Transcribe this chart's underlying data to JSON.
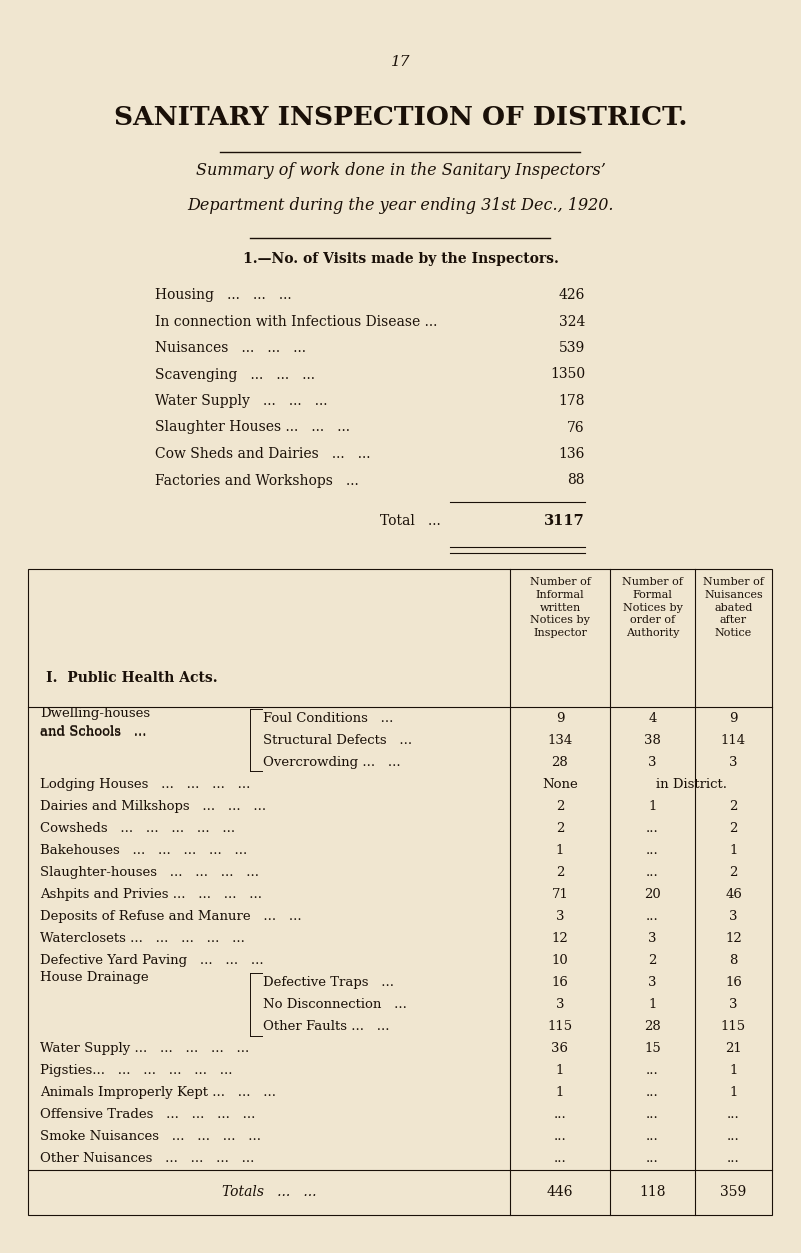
{
  "bg_color": "#f0e6d0",
  "text_color": "#1a1008",
  "page_number": "17",
  "main_title": "SANITARY INSPECTION OF DISTRICT.",
  "subtitle_line1": "Summary of work done in the Sanitary Inspectors’",
  "subtitle_line2": "Department during the year ending 31st Dec., 1920.",
  "section1_title": "1.—No. of Visits made by the Inspectors.",
  "visits": [
    [
      "Housing",
      "...",
      "...",
      "...",
      "426"
    ],
    [
      "In connection with Infectious Disease ...",
      "324"
    ],
    [
      "Nuisances",
      "...",
      "...",
      "...",
      "539"
    ],
    [
      "Scavenging",
      "...",
      "...",
      "...",
      "1350"
    ],
    [
      "Water Supply",
      "...",
      "...",
      "...",
      "178"
    ],
    [
      "Slaughter Houses ...",
      "...",
      "...",
      "76"
    ],
    [
      "Cow Sheds and Dairies",
      "...",
      "...",
      "136"
    ],
    [
      "Factories and Workshops ...",
      "...",
      "88"
    ]
  ],
  "visits_labels": [
    "Housing   ...   ...   ...",
    "In connection with Infectious Disease ...",
    "Nuisances   ...   ...   ...",
    "Scavenging   ...   ...   ...",
    "Water Supply   ...   ...   ...",
    "Slaughter Houses ...   ...   ...",
    "Cow Sheds and Dairies   ...   ...",
    "Factories and Workshops   ..."
  ],
  "visits_values": [
    "426",
    "324",
    "539",
    "1350",
    "178",
    "76",
    "136",
    "88"
  ],
  "total_value": "3117",
  "col_header2": "Number of\nInformal\nwritten\nNotices by\nInspector",
  "col_header3": "Number of\nFormal\nNotices by\norder of\nAuthority",
  "col_header4": "Number of\nNuisances\nabated\nafter\nNotice",
  "section2_title": "I.  Public Health Acts.",
  "rows": [
    {
      "main": "Dwelling-houses",
      "main2": "and Schools   ...",
      "sub": "Foul Conditions   ...",
      "c2": "9",
      "c3": "4",
      "c4": "9",
      "brace_group": "dwelling"
    },
    {
      "main": "",
      "main2": "",
      "sub": "Structural Defects   ...",
      "c2": "134",
      "c3": "38",
      "c4": "114",
      "brace_group": "dwelling"
    },
    {
      "main": "",
      "main2": "",
      "sub": "Overcrowding ...   ...",
      "c2": "28",
      "c3": "3",
      "c4": "3",
      "brace_group": "dwelling"
    },
    {
      "main": "Lodging Houses   ...   ...   ...   ...",
      "main2": "",
      "sub": "",
      "c2": "None",
      "c3": "in District.",
      "c4": "",
      "brace_group": ""
    },
    {
      "main": "Dairies and Milkshops   ...   ...   ...",
      "main2": "",
      "sub": "",
      "c2": "2",
      "c3": "1",
      "c4": "2",
      "brace_group": ""
    },
    {
      "main": "Cowsheds   ...   ...   ...   ...   ...",
      "main2": "",
      "sub": "",
      "c2": "2",
      "c3": "...",
      "c4": "2",
      "brace_group": ""
    },
    {
      "main": "Bakehouses   ...   ...   ...   ...   ...",
      "main2": "",
      "sub": "",
      "c2": "1",
      "c3": "...",
      "c4": "1",
      "brace_group": ""
    },
    {
      "main": "Slaughter-houses   ...   ...   ...   ...",
      "main2": "",
      "sub": "",
      "c2": "2",
      "c3": "...",
      "c4": "2",
      "brace_group": ""
    },
    {
      "main": "Ashpits and Privies ...   ...   ...   ...",
      "main2": "",
      "sub": "",
      "c2": "71",
      "c3": "20",
      "c4": "46",
      "brace_group": ""
    },
    {
      "main": "Deposits of Refuse and Manure   ...   ...",
      "main2": "",
      "sub": "",
      "c2": "3",
      "c3": "...",
      "c4": "3",
      "brace_group": ""
    },
    {
      "main": "Waterclosets ...   ...   ...   ...   ...",
      "main2": "",
      "sub": "",
      "c2": "12",
      "c3": "3",
      "c4": "12",
      "brace_group": ""
    },
    {
      "main": "Defective Yard Paving   ...   ...   ...",
      "main2": "",
      "sub": "",
      "c2": "10",
      "c3": "2",
      "c4": "8",
      "brace_group": ""
    },
    {
      "main": "House Drainage",
      "main2": "",
      "sub": "Defective Traps   ...",
      "c2": "16",
      "c3": "3",
      "c4": "16",
      "brace_group": "drainage"
    },
    {
      "main": "",
      "main2": "",
      "sub": "No Disconnection   ...",
      "c2": "3",
      "c3": "1",
      "c4": "3",
      "brace_group": "drainage"
    },
    {
      "main": "",
      "main2": "",
      "sub": "Other Faults ...   ...",
      "c2": "115",
      "c3": "28",
      "c4": "115",
      "brace_group": "drainage"
    },
    {
      "main": "Water Supply ...   ...   ...   ...   ...",
      "main2": "",
      "sub": "",
      "c2": "36",
      "c3": "15",
      "c4": "21",
      "brace_group": ""
    },
    {
      "main": "Pigsties...   ...   ...   ...   ...   ...",
      "main2": "",
      "sub": "",
      "c2": "1",
      "c3": "...",
      "c4": "1",
      "brace_group": ""
    },
    {
      "main": "Animals Improperly Kept ...   ...   ...",
      "main2": "",
      "sub": "",
      "c2": "1",
      "c3": "...",
      "c4": "1",
      "brace_group": ""
    },
    {
      "main": "Offensive Trades   ...   ...   ...   ...",
      "main2": "",
      "sub": "",
      "c2": "...",
      "c3": "...",
      "c4": "...",
      "brace_group": ""
    },
    {
      "main": "Smoke Nuisances   ...   ...   ...   ...",
      "main2": "",
      "sub": "",
      "c2": "...",
      "c3": "...",
      "c4": "...",
      "brace_group": ""
    },
    {
      "main": "Other Nuisances   ...   ...   ...   ...",
      "main2": "",
      "sub": "",
      "c2": "...",
      "c3": "...",
      "c4": "...",
      "brace_group": ""
    }
  ],
  "totals_label": "Totals   ...   ...",
  "totals_c2": "446",
  "totals_c3": "118",
  "totals_c4": "359"
}
